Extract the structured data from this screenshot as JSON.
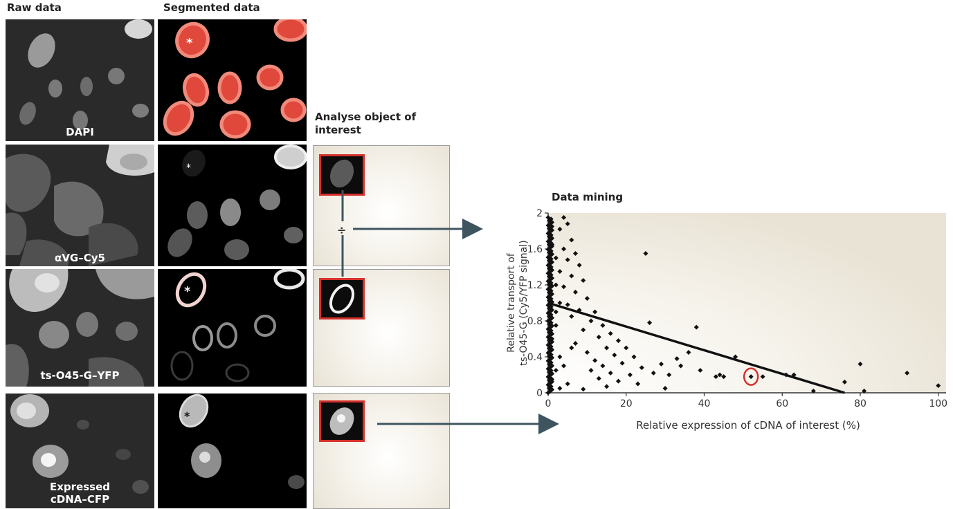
{
  "headers": {
    "raw": "Raw data",
    "segmented": "Segmented data",
    "analyse": "Analyse object of interest",
    "data_mining": "Data mining"
  },
  "tiles": {
    "dapi": "DAPI",
    "cy5": "αVG–Cy5",
    "yfp": "ts-O45-G–YFP",
    "cfp_line1": "Expressed",
    "cfp_line2": "cDNA–CFP"
  },
  "markers": {
    "asterisk": "*",
    "divide": "÷"
  },
  "colors": {
    "segment_red": "#e0483c",
    "highlight_red": "#d6302b",
    "arrow": "#3e5560"
  },
  "chart_data": {
    "type": "scatter",
    "title": "Data mining",
    "xlabel": "Relative expression of cDNA of interest (%)",
    "ylabel_line1": "Relative transport of",
    "ylabel_line2": "ts-O45-G (Cy5/YFP signal)",
    "xlim": [
      0,
      102
    ],
    "ylim": [
      0,
      2
    ],
    "xticks": [
      "0",
      "20",
      "40",
      "60",
      "80",
      "100"
    ],
    "yticks": [
      "0",
      "0.4",
      "0.8",
      "1.2",
      "1.6",
      "2"
    ],
    "points": [
      [
        4,
        1.95
      ],
      [
        5,
        1.88
      ],
      [
        3,
        1.82
      ],
      [
        6,
        1.7
      ],
      [
        4,
        1.6
      ],
      [
        7,
        1.55
      ],
      [
        5,
        1.48
      ],
      [
        8,
        1.42
      ],
      [
        3,
        1.35
      ],
      [
        6,
        1.3
      ],
      [
        9,
        1.25
      ],
      [
        4,
        1.18
      ],
      [
        7,
        1.12
      ],
      [
        10,
        1.05
      ],
      [
        5,
        0.98
      ],
      [
        8,
        0.92
      ],
      [
        12,
        0.9
      ],
      [
        6,
        0.85
      ],
      [
        11,
        0.8
      ],
      [
        14,
        0.75
      ],
      [
        9,
        0.7
      ],
      [
        16,
        0.66
      ],
      [
        13,
        0.62
      ],
      [
        18,
        0.58
      ],
      [
        7,
        0.55
      ],
      [
        15,
        0.5
      ],
      [
        20,
        0.5
      ],
      [
        10,
        0.45
      ],
      [
        17,
        0.42
      ],
      [
        22,
        0.4
      ],
      [
        12,
        0.36
      ],
      [
        19,
        0.33
      ],
      [
        14,
        0.3
      ],
      [
        24,
        0.28
      ],
      [
        11,
        0.25
      ],
      [
        16,
        0.22
      ],
      [
        21,
        0.2
      ],
      [
        13,
        0.16
      ],
      [
        18,
        0.13
      ],
      [
        23,
        0.1
      ],
      [
        15,
        0.07
      ],
      [
        9,
        0.04
      ],
      [
        25,
        1.55
      ],
      [
        29,
        0.32
      ],
      [
        31,
        0.2
      ],
      [
        33,
        0.38
      ],
      [
        34,
        0.3
      ],
      [
        36,
        0.45
      ],
      [
        38,
        0.73
      ],
      [
        43,
        0.18
      ],
      [
        44,
        0.2
      ],
      [
        45,
        0.18
      ],
      [
        48,
        0.4
      ],
      [
        52,
        0.18
      ],
      [
        55,
        0.18
      ],
      [
        61,
        0.2
      ],
      [
        63,
        0.2
      ],
      [
        68,
        0.02
      ],
      [
        76,
        0.12
      ],
      [
        80,
        0.32
      ],
      [
        81,
        0.02
      ],
      [
        92,
        0.22
      ],
      [
        100,
        0.08
      ],
      [
        2,
        1.5
      ],
      [
        2,
        1.2
      ],
      [
        1,
        1.65
      ],
      [
        2,
        0.9
      ],
      [
        1,
        0.6
      ],
      [
        3,
        0.4
      ],
      [
        2,
        0.25
      ],
      [
        1,
        0.15
      ],
      [
        3,
        1.0
      ],
      [
        2,
        0.75
      ],
      [
        4,
        0.3
      ],
      [
        5,
        0.1
      ],
      [
        1,
        1.85
      ],
      [
        3,
        0.05
      ],
      [
        6,
        0.5
      ],
      [
        26,
        0.78
      ],
      [
        27,
        0.22
      ],
      [
        30,
        0.05
      ],
      [
        39,
        0.25
      ]
    ],
    "highlight_point": [
      52,
      0.18
    ],
    "fit_line": [
      [
        0,
        1.0
      ],
      [
        76,
        0.0
      ]
    ]
  }
}
